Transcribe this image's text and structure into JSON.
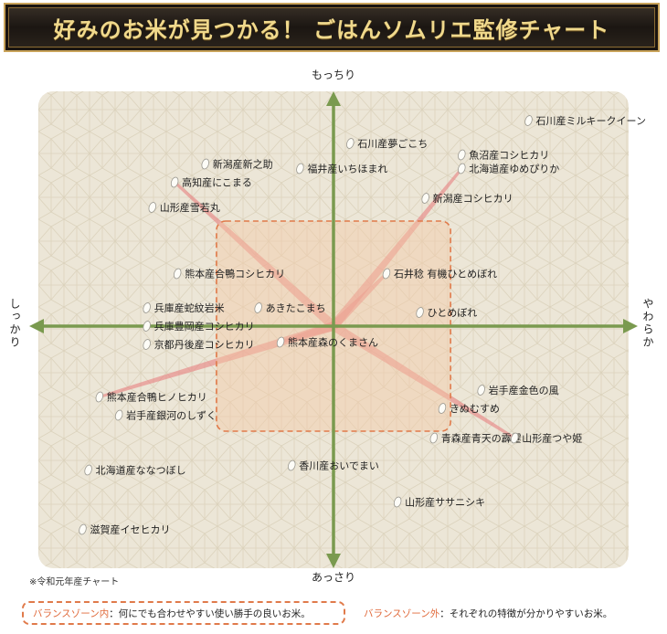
{
  "header": {
    "title": "好みのお米が見つかる！ ごはんソムリエ監修チャート"
  },
  "colors": {
    "axis": "#7a9a4f",
    "panel": "#ece6d7",
    "balance_zone": "#f3c9a6",
    "balance_border": "#e07a4a",
    "ray": "#e88080",
    "banner_gold": "#f0d98c"
  },
  "chart_data": {
    "type": "scatter",
    "title": "",
    "axes": {
      "y_top": "もっちり",
      "y_bottom": "あっさり",
      "x_left": "しっかり",
      "x_right": "やわらか"
    },
    "xlim": [
      -10,
      10
    ],
    "ylim": [
      -10,
      10
    ],
    "grid": false,
    "balance_zone": {
      "x": [
        -4.2,
        4.2
      ],
      "y": [
        -4.6,
        4.6
      ]
    },
    "points": [
      {
        "label": "石川産ミルキークイーン",
        "x": 7.0,
        "y": 9.0,
        "ray": false
      },
      {
        "label": "石川産夢ごこち",
        "x": 0.6,
        "y": 8.0,
        "ray": false
      },
      {
        "label": "魚沼産コシヒカリ",
        "x": 4.6,
        "y": 7.5,
        "ray": false
      },
      {
        "label": "新潟産新之助",
        "x": -4.6,
        "y": 7.1,
        "ray": false
      },
      {
        "label": "福井産いちほまれ",
        "x": -1.2,
        "y": 6.9,
        "ray": false
      },
      {
        "label": "北海道産ゆめぴりか",
        "x": 4.6,
        "y": 6.9,
        "ray": true
      },
      {
        "label": "高知産にこまる",
        "x": -5.7,
        "y": 6.3,
        "ray": true
      },
      {
        "label": "新潟産コシヒカリ",
        "x": 3.3,
        "y": 5.6,
        "ray": false
      },
      {
        "label": "山形産雪若丸",
        "x": -6.5,
        "y": 5.2,
        "ray": false
      },
      {
        "label": "熊本産合鴨コシヒカリ",
        "x": -5.6,
        "y": 2.3,
        "ray": false
      },
      {
        "label": "石井稔 有機ひとめぼれ",
        "x": 1.9,
        "y": 2.3,
        "ray": true
      },
      {
        "label": "兵庫産蛇紋岩米",
        "x": -6.7,
        "y": 0.8,
        "ray": false
      },
      {
        "label": "あきたこまち",
        "x": -2.7,
        "y": 0.8,
        "ray": false
      },
      {
        "label": "ひとめぼれ",
        "x": 3.1,
        "y": 0.6,
        "ray": false
      },
      {
        "label": "兵庫豊岡産コシヒカリ",
        "x": -6.7,
        "y": 0.0,
        "ray": false
      },
      {
        "label": "京都丹後産コシヒカリ",
        "x": -6.7,
        "y": -0.8,
        "ray": false
      },
      {
        "label": "熊本産森のくまさん",
        "x": -1.9,
        "y": -0.7,
        "ray": true
      },
      {
        "label": "熊本産合鴨ヒノヒカリ",
        "x": -8.4,
        "y": -3.1,
        "ray": true
      },
      {
        "label": "岩手産金色の風",
        "x": 5.3,
        "y": -2.8,
        "ray": false
      },
      {
        "label": "岩手産銀河のしずく",
        "x": -7.7,
        "y": -3.9,
        "ray": false
      },
      {
        "label": "きぬむすめ",
        "x": 3.9,
        "y": -3.6,
        "ray": false
      },
      {
        "label": "青森産青天の霹靂",
        "x": 3.6,
        "y": -4.9,
        "ray": false
      },
      {
        "label": "山形産つや姫",
        "x": 6.5,
        "y": -4.9,
        "ray": true
      },
      {
        "label": "北海道産ななつぼし",
        "x": -8.8,
        "y": -6.3,
        "ray": false
      },
      {
        "label": "香川産おいでまい",
        "x": -1.5,
        "y": -6.1,
        "ray": false
      },
      {
        "label": "山形産ササニシキ",
        "x": 2.3,
        "y": -7.7,
        "ray": false
      },
      {
        "label": "滋賀産イセヒカリ",
        "x": -9.0,
        "y": -8.9,
        "ray": false
      }
    ]
  },
  "footnote": "※令和元年産チャート",
  "legend": {
    "inside_key": "バランスゾーン内",
    "inside_text": "：何にでも合わせやすい使い勝手の良いお米。",
    "outside_key": "バランスゾーン外",
    "outside_text": "：それぞれの特徴が分かりやすいお米。"
  }
}
